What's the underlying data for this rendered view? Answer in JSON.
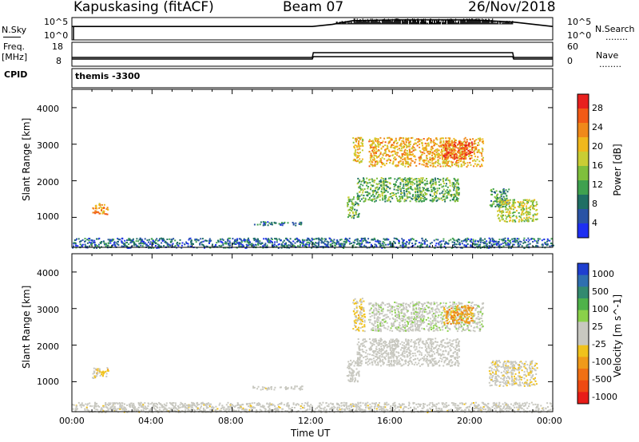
{
  "header": {
    "station": "Kapuskasing (fitACF)",
    "beam": "Beam 07",
    "date": "26/Nov/2018"
  },
  "strip": {
    "nsky_label": "N.Sky",
    "nsky_ticks": [
      "10^5",
      "10^0"
    ],
    "nsearch_label": "N.Search",
    "nsearch_ticks": [
      "10^5",
      "10^0"
    ],
    "freq_label_line1": "Freq.",
    "freq_label_line2": "[MHz]",
    "freq_ticks": [
      "18",
      "8"
    ],
    "nave_label": "Nave",
    "nave_ticks": [
      "60",
      "0"
    ],
    "cpid_label": "CPID",
    "cpid_value": "themis -3300",
    "dotted": "........"
  },
  "axes": {
    "x_ticks": [
      "00:00",
      "04:00",
      "08:00",
      "12:00",
      "16:00",
      "20:00",
      "00:00"
    ],
    "x_label": "Time UT",
    "y_label": "Slant Range [km]",
    "y_ticks": [
      "4000",
      "3000",
      "2000",
      "1000"
    ]
  },
  "colorbars": {
    "power_label": "Power [dB]",
    "power_ticks": [
      "28",
      "24",
      "20",
      "16",
      "12",
      "8",
      "4"
    ],
    "power_colors": [
      "#e8211f",
      "#f25a16",
      "#f0891a",
      "#f0b81c",
      "#c9cd34",
      "#7fbf3c",
      "#3fa14f",
      "#1f6f64",
      "#2a53a5",
      "#1e2ff2"
    ],
    "velocity_label": "Velocity [m s^-1]",
    "velocity_ticks": [
      "1000",
      "500",
      "100",
      "25",
      "-25",
      "-100",
      "-500",
      "-1000"
    ],
    "velocity_colors": [
      "#1f3fd0",
      "#2f6fb0",
      "#338a6f",
      "#4fb24a",
      "#8ad14a",
      "#c8c8c0",
      "#c8c8c0",
      "#f0c21c",
      "#f09a1a",
      "#f07014",
      "#ee4a12",
      "#e81c18"
    ]
  },
  "chart_data": [
    {
      "type": "line",
      "title": "N.Sky / N.Search",
      "x_unit": "hours UT",
      "xlim": [
        0,
        24
      ],
      "series": [
        {
          "name": "N.Sky",
          "x": [
            0,
            4,
            8,
            12,
            13,
            14,
            16,
            18,
            20,
            22,
            24
          ],
          "values": [
            1000,
            1000,
            1000,
            1000,
            3000,
            20000,
            30000,
            30000,
            30000,
            10000,
            1000
          ]
        }
      ],
      "yscale": "log",
      "ylim": [
        1,
        100000
      ]
    },
    {
      "type": "line",
      "title": "Freq / Nave",
      "xlim": [
        0,
        24
      ],
      "series": [
        {
          "name": "Freq.",
          "x": [
            0,
            12,
            12.05,
            22,
            22.05,
            24
          ],
          "values": [
            11,
            11,
            12,
            12,
            11,
            11
          ]
        },
        {
          "name": "Nave",
          "x": [
            0,
            12,
            12.05,
            22,
            22.05,
            24
          ],
          "values": [
            22,
            22,
            34,
            34,
            22,
            22
          ]
        }
      ],
      "ylim_freq": [
        8,
        18
      ],
      "ylim_nave": [
        0,
        60
      ]
    },
    {
      "type": "heatmap",
      "title": "Power [dB]",
      "xlim": [
        0,
        24
      ],
      "ylim": [
        180,
        4500
      ],
      "xlabel": "Time UT",
      "ylabel": "Slant Range [km]",
      "zlim": [
        0,
        30
      ],
      "regions": [
        {
          "t": [
            0,
            24
          ],
          "r": [
            180,
            450
          ],
          "power": 6
        },
        {
          "t": [
            1.0,
            1.8
          ],
          "r": [
            1100,
            1400
          ],
          "power": 22
        },
        {
          "t": [
            9.0,
            11.5
          ],
          "r": [
            800,
            900
          ],
          "power": 6
        },
        {
          "t": [
            13.7,
            14.3
          ],
          "r": [
            1000,
            1600
          ],
          "power": 12
        },
        {
          "t": [
            14.0,
            14.5
          ],
          "r": [
            2500,
            3200
          ],
          "power": 18
        },
        {
          "t": [
            14.2,
            19.3
          ],
          "r": [
            1450,
            2100
          ],
          "power": 12
        },
        {
          "t": [
            14.8,
            20.5
          ],
          "r": [
            2400,
            3200
          ],
          "power": 20
        },
        {
          "t": [
            18.5,
            20.0
          ],
          "r": [
            2600,
            3100
          ],
          "power": 26
        },
        {
          "t": [
            20.8,
            21.8
          ],
          "r": [
            1300,
            1800
          ],
          "power": 10
        },
        {
          "t": [
            21.2,
            23.2
          ],
          "r": [
            900,
            1500
          ],
          "power": 16
        }
      ]
    },
    {
      "type": "heatmap",
      "title": "Velocity [m s^-1]",
      "xlim": [
        0,
        24
      ],
      "ylim": [
        180,
        4500
      ],
      "xlabel": "Time UT",
      "ylabel": "Slant Range [km]",
      "zlim": [
        -1000,
        1000
      ],
      "regions": [
        {
          "t": [
            0,
            24
          ],
          "r": [
            180,
            450
          ],
          "velocity": -30
        },
        {
          "t": [
            1.0,
            1.8
          ],
          "r": [
            1100,
            1400
          ],
          "velocity": -200
        },
        {
          "t": [
            9.0,
            11.5
          ],
          "r": [
            800,
            900
          ],
          "velocity": -30
        },
        {
          "t": [
            13.7,
            14.3
          ],
          "r": [
            1000,
            1600
          ],
          "velocity": 0
        },
        {
          "t": [
            14.0,
            14.6
          ],
          "r": [
            2400,
            3300
          ],
          "velocity": -200
        },
        {
          "t": [
            14.2,
            19.3
          ],
          "r": [
            1450,
            2200
          ],
          "velocity": 0
        },
        {
          "t": [
            14.8,
            20.5
          ],
          "r": [
            2400,
            3200
          ],
          "velocity": 80
        },
        {
          "t": [
            18.5,
            20.0
          ],
          "r": [
            2600,
            3100
          ],
          "velocity": -400
        },
        {
          "t": [
            20.8,
            23.2
          ],
          "r": [
            900,
            1600
          ],
          "velocity": -100
        }
      ]
    }
  ]
}
